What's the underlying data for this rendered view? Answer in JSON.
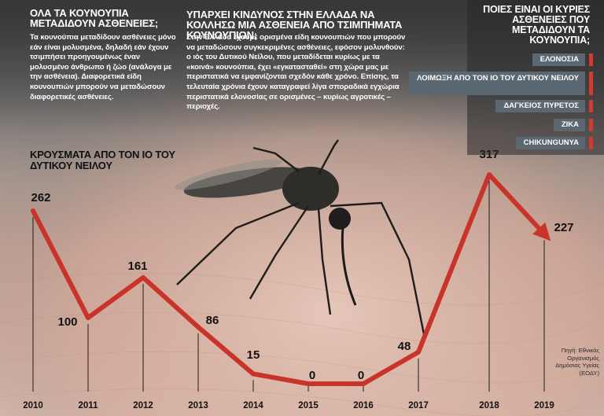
{
  "box_left": {
    "heading": "ΟΛΑ ΤΑ ΚΟΥΝΟΥΠΙΑ ΜΕΤΑΔΙΔΟΥΝ ΑΣΘΕΝΕΙΕΣ;",
    "body": "Τα κουνούπια μεταδίδουν ασθένειες μόνο εάν είναι μολυσμένα, δηλαδή εάν έχουν τσιμπήσει προηγουμένως έναν μολυσμένο άνθρωπο ή ζώο (ανάλογα με την ασθένεια). Διαφορετικά είδη κουνουπιών μπορούν να μεταδώσουν διαφορετικές ασθένειες."
  },
  "box_middle": {
    "heading": "ΥΠΑΡΧΕΙ ΚΙΝΔΥΝΟΣ ΣΤΗΝ ΕΛΛΑΔΑ ΝΑ ΚΟΛΛΗΣΩ ΜΙΑ ΑΣΘΕΝΕΙΑ ΑΠΟ ΤΣΙΜΠΗΜΑΤΑ ΚΟΥΝΟΥΠΙΩΝ;",
    "body": "Στην Ελλάδα έχουμε ορισμένα είδη κουνουπιών που μπορούν να μεταδώσουν συγκεκριμένες ασθένειες, εφόσον μολυνθούν: ο ιός του Δυτικού Νείλου, που μεταδίδεται κυρίως με τα «κοινά» κουνούπια, έχει «εγκατασταθεί» στη χώρα μας με περιστατικά να εμφανίζονται σχεδόν κάθε χρόνο. Επίσης, τα τελευταία χρόνια έχουν καταγραφεί λίγα σποραδικά εγχώρια περιστατικά ελονοσίας σε ορισμένες – κυρίως αγροτικές – περιοχές."
  },
  "diseases_panel": {
    "title": "ΠΟΙΕΣ ΕΙΝΑΙ ΟΙ ΚΥΡΙΕΣ ΑΣΘΕΝΕΙΕΣ ΠΟΥ ΜΕΤΑΔΙΔΟΥΝ ΤΑ ΚΟΥΝΟΥΠΙΑ;",
    "items": [
      "ΕΛΟΝΟΣΙΑ",
      "ΛΟΙΜΩΞΗ ΑΠΟ ΤΟΝ ΙΟ ΤΟΥ ΔΥΤΙΚΟΥ ΝΕΙΛΟΥ",
      "ΔΑΓΚΕΙΟΣ ΠΥΡΕΤΟΣ",
      "ΖΙΚΑ",
      "CHIKUNGUNYA"
    ],
    "accent_color": "#d43a2f",
    "item_bg": "#5b6771"
  },
  "source": "Πηγή: Εθνικός Οργανισμός Δημόσιας Υγείας (ΕΟΔΥ)",
  "chart_data": {
    "type": "line",
    "title": "ΚΡΟΥΣΜΑΤΑ ΑΠΟ ΤΟΝ ΙΟ ΤΟΥ ΔΥΤΙΚΟΥ ΝΕΙΛΟΥ",
    "xlabel": "",
    "ylabel": "",
    "x": [
      "2010",
      "2011",
      "2012",
      "2013",
      "2014",
      "2015",
      "2016",
      "2017",
      "2018",
      "2019"
    ],
    "values": [
      262,
      100,
      161,
      86,
      15,
      0,
      0,
      48,
      317,
      227
    ],
    "ylim": [
      0,
      330
    ],
    "line_color": "#c8332a",
    "grid": false,
    "legend": "none"
  }
}
